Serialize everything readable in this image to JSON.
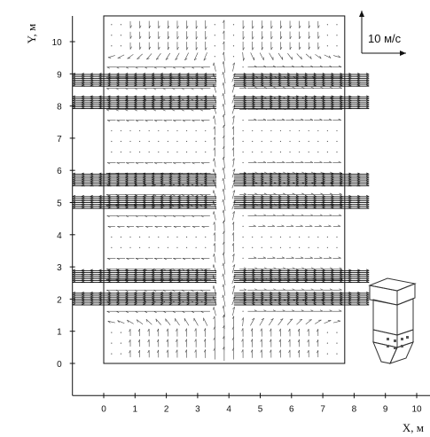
{
  "chart_data": {
    "type": "vector-field",
    "xlabel": "X, м",
    "ylabel": "Y, м",
    "xlim": [
      -1,
      10.6
    ],
    "ylim": [
      -1,
      10.8
    ],
    "x_ticks": [
      "0",
      "1",
      "2",
      "3",
      "4",
      "5",
      "6",
      "7",
      "8",
      "9",
      "10"
    ],
    "y_ticks": [
      "0",
      "1",
      "2",
      "3",
      "4",
      "5",
      "6",
      "7",
      "8",
      "9",
      "10"
    ],
    "domain_box": {
      "x": [
        0,
        7.7
      ],
      "y": [
        0,
        10.8
      ]
    },
    "jet_levels_y": [
      2,
      2.7,
      5,
      5.7,
      8.1,
      8.8
    ],
    "jet_span_x": [
      -0.6,
      8.3
    ],
    "scale_reference": {
      "label": "10 м/с",
      "value": 10
    },
    "grid": false,
    "legend": "none",
    "colors": {
      "vectors": "#222222",
      "axes": "#111111",
      "background": "#ffffff"
    },
    "inset": "boiler-furnace-schematic"
  }
}
